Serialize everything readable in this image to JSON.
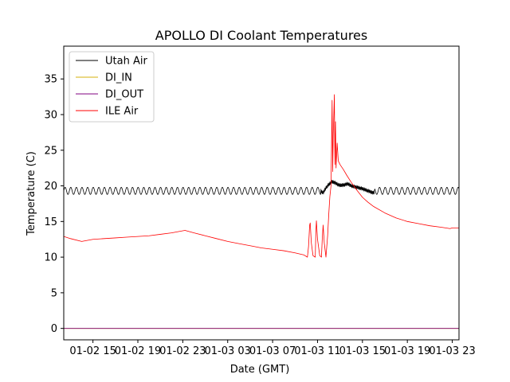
{
  "chart_data": {
    "type": "line",
    "title": "APOLLO DI Coolant Temperatures",
    "xlabel": "Date (GMT)",
    "ylabel": "Temperature (C)",
    "x_unit": "hours since 01-02 00:00 GMT",
    "xlim": [
      12.4,
      47.6
    ],
    "ylim": [
      -1.6,
      39.6
    ],
    "x_ticks": [
      {
        "value": 15,
        "label": "01-02 15"
      },
      {
        "value": 19,
        "label": "01-02 19"
      },
      {
        "value": 23,
        "label": "01-02 23"
      },
      {
        "value": 27,
        "label": "01-03 03"
      },
      {
        "value": 31,
        "label": "01-03 07"
      },
      {
        "value": 35,
        "label": "01-03 11"
      },
      {
        "value": 39,
        "label": "01-03 15"
      },
      {
        "value": 43,
        "label": "01-03 19"
      },
      {
        "value": 47,
        "label": "01-03 23"
      }
    ],
    "y_ticks": [
      {
        "value": 0,
        "label": "0"
      },
      {
        "value": 5,
        "label": "5"
      },
      {
        "value": 10,
        "label": "10"
      },
      {
        "value": 15,
        "label": "15"
      },
      {
        "value": 20,
        "label": "20"
      },
      {
        "value": 25,
        "label": "25"
      },
      {
        "value": 30,
        "label": "30"
      },
      {
        "value": 35,
        "label": "35"
      }
    ],
    "legend_position": "top-left",
    "grid": false,
    "series": [
      {
        "name": "Utah Air",
        "color": "#000000",
        "oscillation": {
          "amplitude": 0.5,
          "period_hours": 0.5
        },
        "points": [
          [
            12.4,
            19.3
          ],
          [
            35.3,
            19.3
          ],
          [
            35.5,
            19.0
          ],
          [
            35.7,
            19.6
          ],
          [
            36.0,
            20.2
          ],
          [
            36.3,
            20.6
          ],
          [
            36.6,
            20.4
          ],
          [
            36.9,
            20.1
          ],
          [
            37.3,
            20.1
          ],
          [
            37.7,
            20.3
          ],
          [
            38.0,
            20.0
          ],
          [
            38.5,
            19.8
          ],
          [
            39.0,
            19.6
          ],
          [
            39.5,
            19.3
          ],
          [
            40.0,
            19.0
          ],
          [
            40.1,
            19.3
          ],
          [
            47.6,
            19.3
          ]
        ]
      },
      {
        "name": "DI_IN",
        "color": "#d4b10b",
        "points": [
          [
            12.4,
            0.0
          ],
          [
            47.6,
            0.0
          ]
        ]
      },
      {
        "name": "DI_OUT",
        "color": "#800080",
        "points": [
          [
            12.4,
            0.0
          ],
          [
            47.6,
            0.0
          ]
        ]
      },
      {
        "name": "ILE Air",
        "color": "#ff0000",
        "points": [
          [
            12.4,
            12.9
          ],
          [
            13.0,
            12.6
          ],
          [
            14.0,
            12.2
          ],
          [
            15.0,
            12.5
          ],
          [
            16.0,
            12.6
          ],
          [
            17.0,
            12.7
          ],
          [
            18.0,
            12.8
          ],
          [
            19.0,
            12.9
          ],
          [
            20.0,
            13.0
          ],
          [
            21.0,
            13.2
          ],
          [
            22.0,
            13.4
          ],
          [
            23.0,
            13.7
          ],
          [
            23.2,
            13.75
          ],
          [
            24.0,
            13.4
          ],
          [
            25.0,
            13.0
          ],
          [
            26.0,
            12.6
          ],
          [
            27.0,
            12.2
          ],
          [
            28.0,
            11.9
          ],
          [
            29.0,
            11.6
          ],
          [
            30.0,
            11.3
          ],
          [
            31.0,
            11.1
          ],
          [
            32.0,
            10.9
          ],
          [
            33.0,
            10.6
          ],
          [
            33.8,
            10.3
          ],
          [
            34.1,
            10.0
          ],
          [
            34.2,
            11.5
          ],
          [
            34.3,
            14.5
          ],
          [
            34.35,
            14.8
          ],
          [
            34.45,
            12.0
          ],
          [
            34.6,
            10.2
          ],
          [
            34.8,
            10.0
          ],
          [
            34.85,
            13.5
          ],
          [
            34.9,
            15.1
          ],
          [
            35.0,
            12.5
          ],
          [
            35.2,
            10.2
          ],
          [
            35.35,
            10.0
          ],
          [
            35.42,
            12.5
          ],
          [
            35.5,
            14.5
          ],
          [
            35.6,
            12.0
          ],
          [
            35.75,
            10.0
          ],
          [
            35.9,
            13.0
          ],
          [
            36.0,
            16.0
          ],
          [
            36.1,
            18.5
          ],
          [
            36.2,
            20.0
          ],
          [
            36.3,
            32.0
          ],
          [
            36.35,
            22.0
          ],
          [
            36.4,
            27.0
          ],
          [
            36.5,
            32.8
          ],
          [
            36.55,
            23.0
          ],
          [
            36.6,
            29.0
          ],
          [
            36.65,
            22.5
          ],
          [
            36.75,
            26.0
          ],
          [
            36.85,
            23.5
          ],
          [
            37.0,
            23.0
          ],
          [
            37.3,
            22.3
          ],
          [
            37.6,
            21.5
          ],
          [
            38.0,
            20.5
          ],
          [
            38.5,
            19.4
          ],
          [
            39.0,
            18.4
          ],
          [
            39.5,
            17.7
          ],
          [
            40.0,
            17.1
          ],
          [
            41.0,
            16.2
          ],
          [
            42.0,
            15.5
          ],
          [
            43.0,
            15.0
          ],
          [
            44.0,
            14.7
          ],
          [
            45.0,
            14.4
          ],
          [
            46.0,
            14.2
          ],
          [
            46.8,
            14.0
          ],
          [
            47.0,
            14.1
          ],
          [
            47.6,
            14.1
          ]
        ]
      }
    ]
  }
}
